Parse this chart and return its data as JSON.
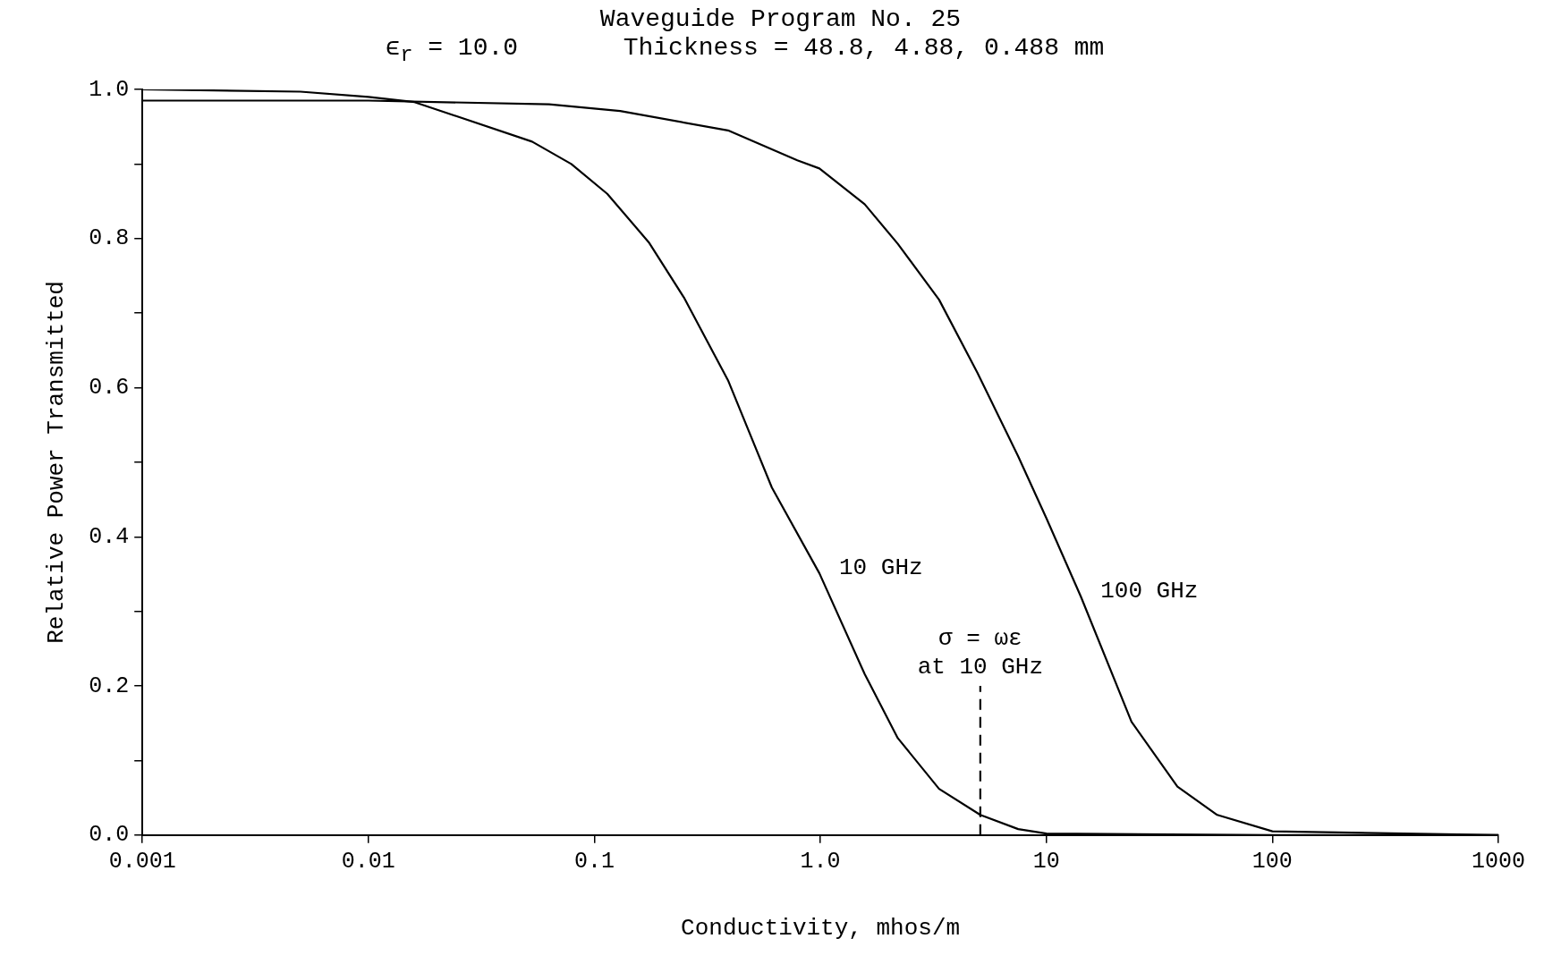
{
  "chart_data": {
    "type": "line",
    "title": "Waveguide Program No. 25",
    "subtitle": "ϵ$_{r}$ = 10.0       Thickness = 48.8, 4.88, 0.488 mm",
    "xlabel": "Conductivity, mhos/m",
    "ylabel": "Relative Power Transmitted",
    "log": "x",
    "xlim": [
      0.001,
      1000
    ],
    "xticks": [
      0.001,
      0.01,
      0.1,
      {
        "value": 1,
        "label": "1.0"
      },
      10,
      100,
      1000
    ],
    "ylim": [
      0,
      1
    ],
    "yticks": [
      {
        "value": 0,
        "label": "0.0"
      },
      {
        "value": 0.1,
        "label": null
      },
      {
        "value": 0.2,
        "label": "0.2"
      },
      {
        "value": 0.3,
        "label": null
      },
      {
        "value": 0.4,
        "label": "0.4"
      },
      {
        "value": 0.5,
        "label": null
      },
      {
        "value": 0.6,
        "label": "0.6"
      },
      {
        "value": 0.7,
        "label": null
      },
      {
        "value": 0.8,
        "label": "0.8"
      },
      {
        "value": 0.9,
        "label": null
      },
      {
        "value": 1,
        "label": "1.0"
      }
    ],
    "grid": false,
    "legend": false,
    "marker": "none",
    "series": [
      {
        "name": "10 GHz",
        "color": "#000000",
        "x": [
          0.001,
          0.005,
          0.01,
          0.016,
          0.053,
          0.079,
          0.114,
          0.174,
          0.25,
          0.39,
          0.61,
          0.99,
          1.57,
          2.2,
          3.35,
          5.1,
          7.5,
          10,
          100,
          1000
        ],
        "values": [
          1.0,
          0.997,
          0.99,
          0.983,
          0.93,
          0.9,
          0.86,
          0.795,
          0.72,
          0.61,
          0.466,
          0.351,
          0.216,
          0.13,
          0.062,
          0.027,
          0.008,
          0.002,
          0,
          0
        ]
      },
      {
        "name": "100 GHz",
        "color": "#000000",
        "x": [
          0.001,
          0.01,
          0.063,
          0.13,
          0.39,
          0.79,
          0.99,
          1.57,
          2.2,
          3.35,
          4.95,
          7.5,
          10,
          14.2,
          23.8,
          38,
          57,
          100,
          1000
        ],
        "values": [
          0.985,
          0.985,
          0.98,
          0.971,
          0.945,
          0.905,
          0.894,
          0.846,
          0.793,
          0.718,
          0.62,
          0.508,
          0.425,
          0.32,
          0.152,
          0.065,
          0.027,
          0.005,
          0
        ]
      },
      {
        "type": "line",
        "color": "#000000",
        "line_style": "dashed",
        "x": [
          5.1,
          5.1
        ],
        "values": [
          0,
          0.2
        ]
      }
    ],
    "annotations": [
      {
        "text": "σ = ωε\nat 10 GHz",
        "x": 5.1,
        "y": 0.2
      }
    ]
  }
}
